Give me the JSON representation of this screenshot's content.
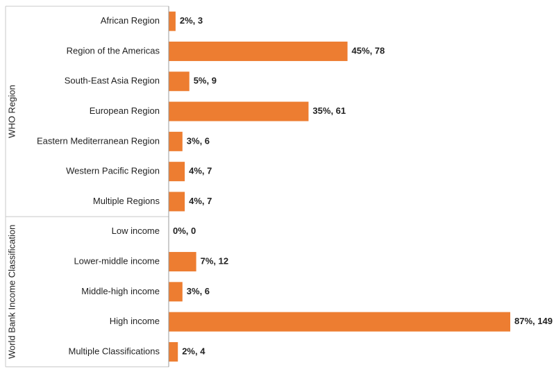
{
  "chart_data": {
    "type": "grouped-bar",
    "color": "#ed7d31",
    "groups": [
      {
        "label": "WHO Region",
        "categories": [
          "African Region",
          "Region of the Americas",
          "South-East Asia Region",
          "European Region",
          "Eastern Mediterranean Region",
          "Western Pacific Region",
          "Multiple Regions"
        ],
        "values": [
          3,
          78,
          9,
          61,
          6,
          7,
          7
        ],
        "value_labels": [
          "2%, 3",
          "45%, 78",
          "5%, 9",
          "35%, 61",
          "3%, 6",
          "4%, 7",
          "4%, 7"
        ]
      },
      {
        "label": "World Bank Income Classification",
        "categories": [
          "Low income",
          "Lower-middle income",
          "Middle-high income",
          "High income",
          "Multiple Classifications"
        ],
        "values": [
          0,
          12,
          6,
          149,
          4
        ],
        "value_labels": [
          "0%, 0",
          "7%, 12",
          "3%, 6",
          "87%, 149",
          "2%, 4"
        ]
      }
    ]
  }
}
